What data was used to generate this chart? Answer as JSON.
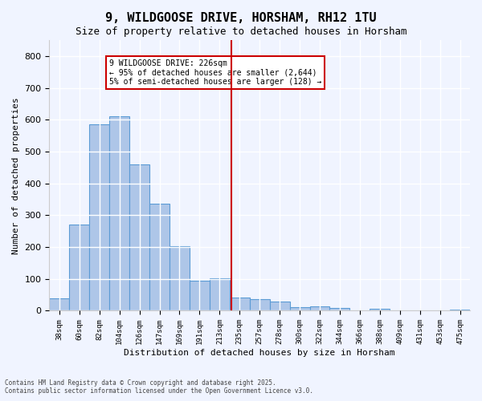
{
  "title": "9, WILDGOOSE DRIVE, HORSHAM, RH12 1TU",
  "subtitle": "Size of property relative to detached houses in Horsham",
  "xlabel": "Distribution of detached houses by size in Horsham",
  "ylabel": "Number of detached properties",
  "bar_labels": [
    "38sqm",
    "60sqm",
    "82sqm",
    "104sqm",
    "126sqm",
    "147sqm",
    "169sqm",
    "191sqm",
    "213sqm",
    "235sqm",
    "257sqm",
    "278sqm",
    "300sqm",
    "322sqm",
    "344sqm",
    "366sqm",
    "388sqm",
    "409sqm",
    "431sqm",
    "453sqm",
    "475sqm"
  ],
  "bar_values": [
    40,
    270,
    585,
    610,
    460,
    337,
    202,
    95,
    102,
    42,
    36,
    30,
    12,
    14,
    10,
    0,
    5,
    0,
    0,
    0,
    3
  ],
  "bar_color": "#aec6e8",
  "bar_edge_color": "#5b9bd5",
  "vline_x": 8.6,
  "vline_color": "#cc0000",
  "annotation_title": "9 WILDGOOSE DRIVE: 226sqm",
  "annotation_line1": "← 95% of detached houses are smaller (2,644)",
  "annotation_line2": "5% of semi-detached houses are larger (128) →",
  "annotation_box_color": "#ffffff",
  "annotation_box_edge": "#cc0000",
  "ylim": [
    0,
    850
  ],
  "yticks": [
    0,
    100,
    200,
    300,
    400,
    500,
    600,
    700,
    800
  ],
  "bg_color": "#f0f4ff",
  "grid_color": "#ffffff",
  "footer_line1": "Contains HM Land Registry data © Crown copyright and database right 2025.",
  "footer_line2": "Contains public sector information licensed under the Open Government Licence v3.0."
}
